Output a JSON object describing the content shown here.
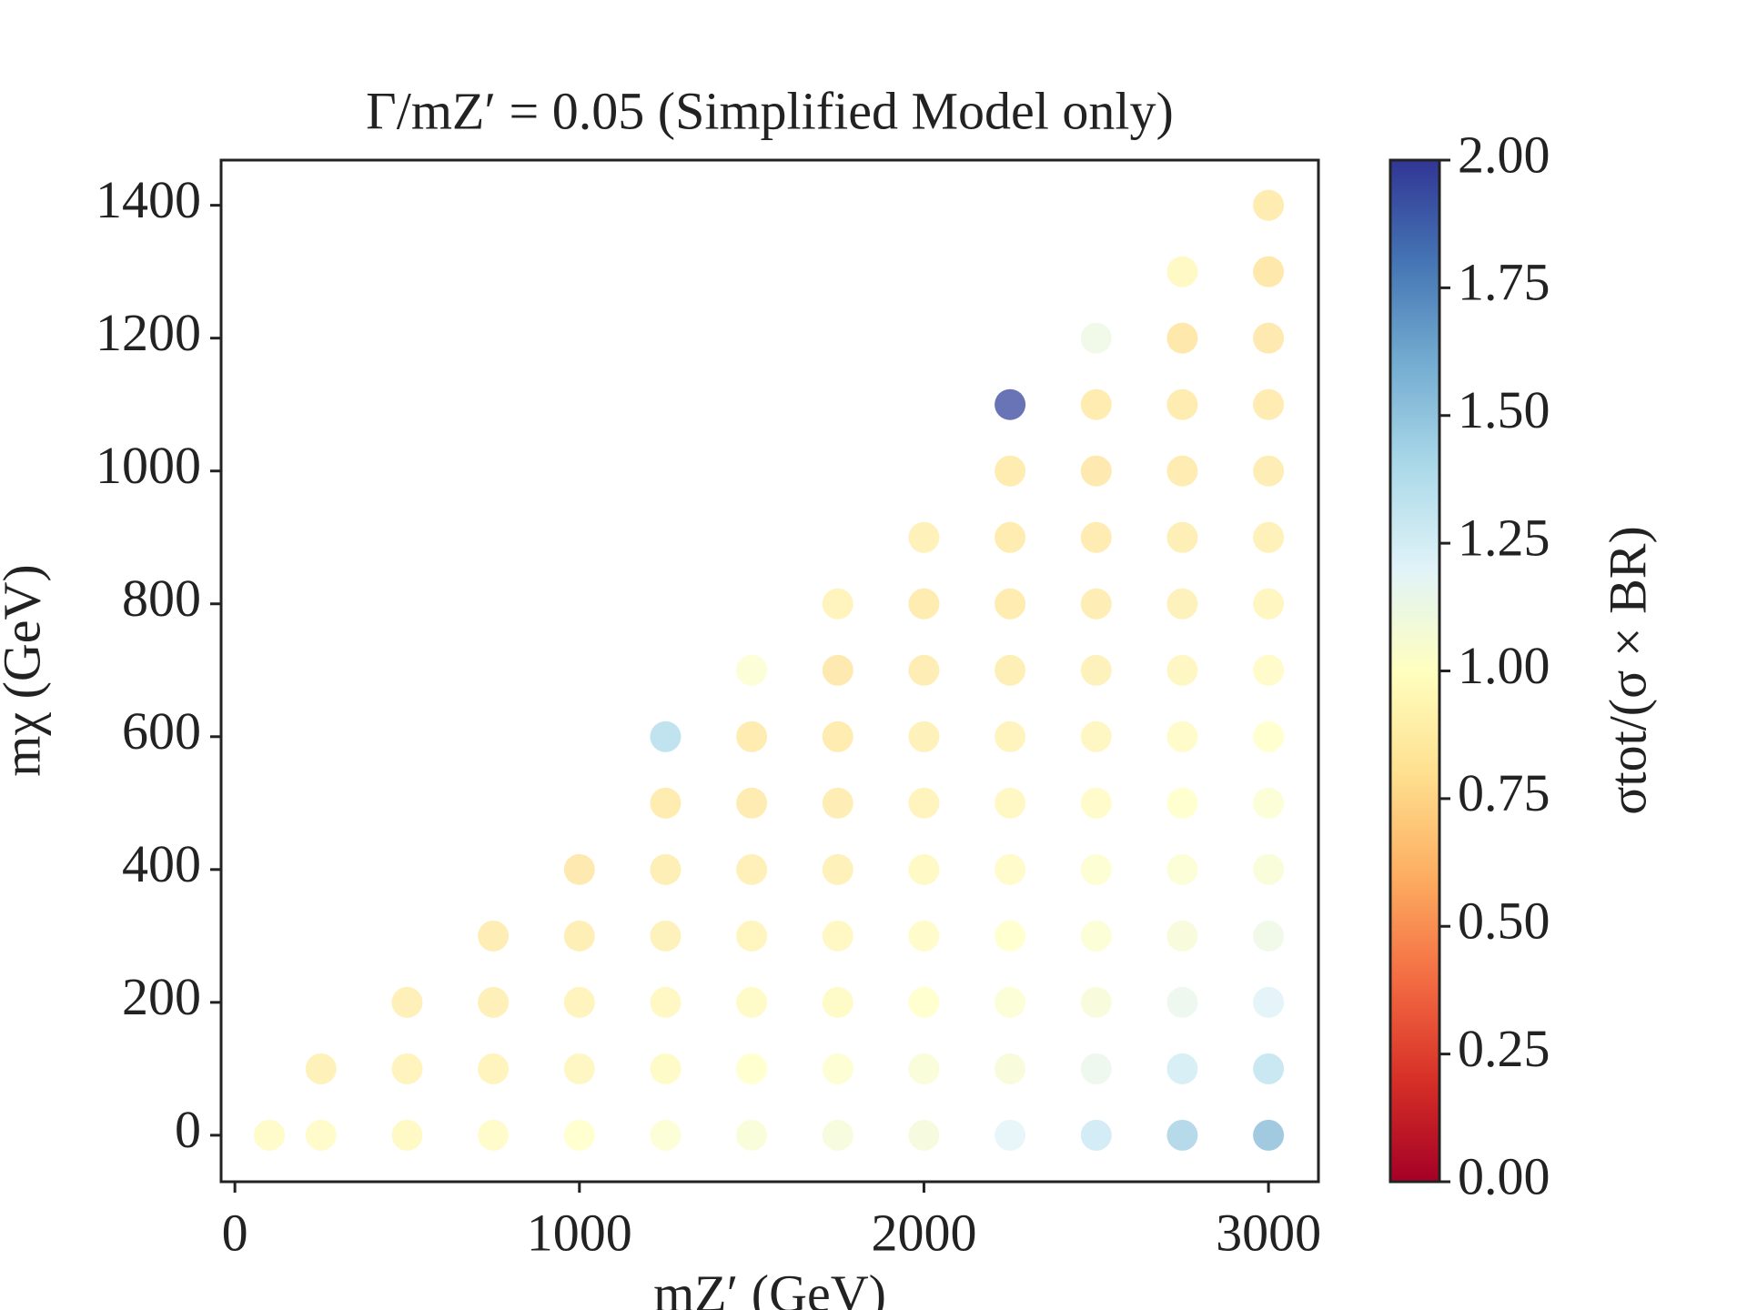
{
  "chart_data": {
    "type": "scatter",
    "title": "Γ/mZ′ = 0.05 (Simplified Model only)",
    "x_label": "mZ′ (GeV)",
    "y_label": "mχ (GeV)",
    "colorbar_label": "σtot/(σ × BR)",
    "colormap": "RdYlBu",
    "x": [
      100,
      250,
      250,
      500,
      500,
      500,
      750,
      750,
      750,
      750,
      1000,
      1000,
      1000,
      1000,
      1000,
      1250,
      1250,
      1250,
      1250,
      1250,
      1250,
      1250,
      1500,
      1500,
      1500,
      1500,
      1500,
      1500,
      1500,
      1500,
      1750,
      1750,
      1750,
      1750,
      1750,
      1750,
      1750,
      1750,
      1750,
      2000,
      2000,
      2000,
      2000,
      2000,
      2000,
      2000,
      2000,
      2000,
      2000,
      2250,
      2250,
      2250,
      2250,
      2250,
      2250,
      2250,
      2250,
      2250,
      2250,
      2250,
      2250,
      2500,
      2500,
      2500,
      2500,
      2500,
      2500,
      2500,
      2500,
      2500,
      2500,
      2500,
      2500,
      2500,
      2750,
      2750,
      2750,
      2750,
      2750,
      2750,
      2750,
      2750,
      2750,
      2750,
      2750,
      2750,
      2750,
      2750,
      3000,
      3000,
      3000,
      3000,
      3000,
      3000,
      3000,
      3000,
      3000,
      3000,
      3000,
      3000,
      3000,
      3000,
      3000
    ],
    "y": [
      0,
      0,
      100,
      0,
      100,
      200,
      0,
      100,
      200,
      300,
      0,
      100,
      200,
      300,
      400,
      0,
      100,
      200,
      300,
      400,
      500,
      600,
      0,
      100,
      200,
      300,
      400,
      500,
      600,
      700,
      0,
      100,
      200,
      300,
      400,
      500,
      600,
      700,
      800,
      0,
      100,
      200,
      300,
      400,
      500,
      600,
      700,
      800,
      900,
      0,
      100,
      200,
      300,
      400,
      500,
      600,
      700,
      800,
      900,
      1000,
      1100,
      0,
      100,
      200,
      300,
      400,
      500,
      600,
      700,
      800,
      900,
      1000,
      1100,
      1200,
      0,
      100,
      200,
      300,
      400,
      500,
      600,
      700,
      800,
      900,
      1000,
      1100,
      1200,
      1300,
      0,
      100,
      200,
      300,
      400,
      500,
      600,
      700,
      800,
      900,
      1000,
      1100,
      1200,
      1300,
      1400
    ],
    "c": [
      0.97,
      0.97,
      0.88,
      0.95,
      0.9,
      0.87,
      0.97,
      0.9,
      0.87,
      0.85,
      1.0,
      0.93,
      0.9,
      0.86,
      0.82,
      1.03,
      0.96,
      0.94,
      0.89,
      0.86,
      0.83,
      1.4,
      1.05,
      1.0,
      0.96,
      0.91,
      0.87,
      0.84,
      0.83,
      1.03,
      1.07,
      1.02,
      0.96,
      0.94,
      0.88,
      0.85,
      0.83,
      0.82,
      0.9,
      1.08,
      1.05,
      1.0,
      0.97,
      0.95,
      0.9,
      0.88,
      0.85,
      0.83,
      0.88,
      1.2,
      1.06,
      1.04,
      1.0,
      0.97,
      0.94,
      0.9,
      0.86,
      0.83,
      0.83,
      0.83,
      1.95,
      1.3,
      1.15,
      1.06,
      1.03,
      1.02,
      0.97,
      0.93,
      0.89,
      0.85,
      0.84,
      0.82,
      0.83,
      1.12,
      1.45,
      1.28,
      1.15,
      1.06,
      1.04,
      1.0,
      0.97,
      0.93,
      0.89,
      0.86,
      0.84,
      0.83,
      0.8,
      0.95,
      1.55,
      1.35,
      1.22,
      1.12,
      1.05,
      1.03,
      1.0,
      0.97,
      0.92,
      0.88,
      0.85,
      0.84,
      0.82,
      0.8,
      0.83
    ],
    "xlim": [
      -40,
      3145
    ],
    "ylim": [
      -70,
      1468
    ],
    "xticks": [
      0,
      1000,
      2000,
      3000
    ],
    "yticks": [
      0,
      200,
      400,
      600,
      800,
      1000,
      1200,
      1400
    ],
    "clim": [
      0,
      2
    ],
    "cticks": [
      {
        "value": 0,
        "label": "0.00"
      },
      {
        "value": 0.25,
        "label": "0.25"
      },
      {
        "value": 0.5,
        "label": "0.50"
      },
      {
        "value": 0.75,
        "label": "0.75"
      },
      {
        "value": 1,
        "label": "1.00"
      },
      {
        "value": 1.25,
        "label": "1.25"
      },
      {
        "value": 1.5,
        "label": "1.50"
      },
      {
        "value": 1.75,
        "label": "1.75"
      },
      {
        "value": 2,
        "label": "2.00"
      }
    ]
  }
}
